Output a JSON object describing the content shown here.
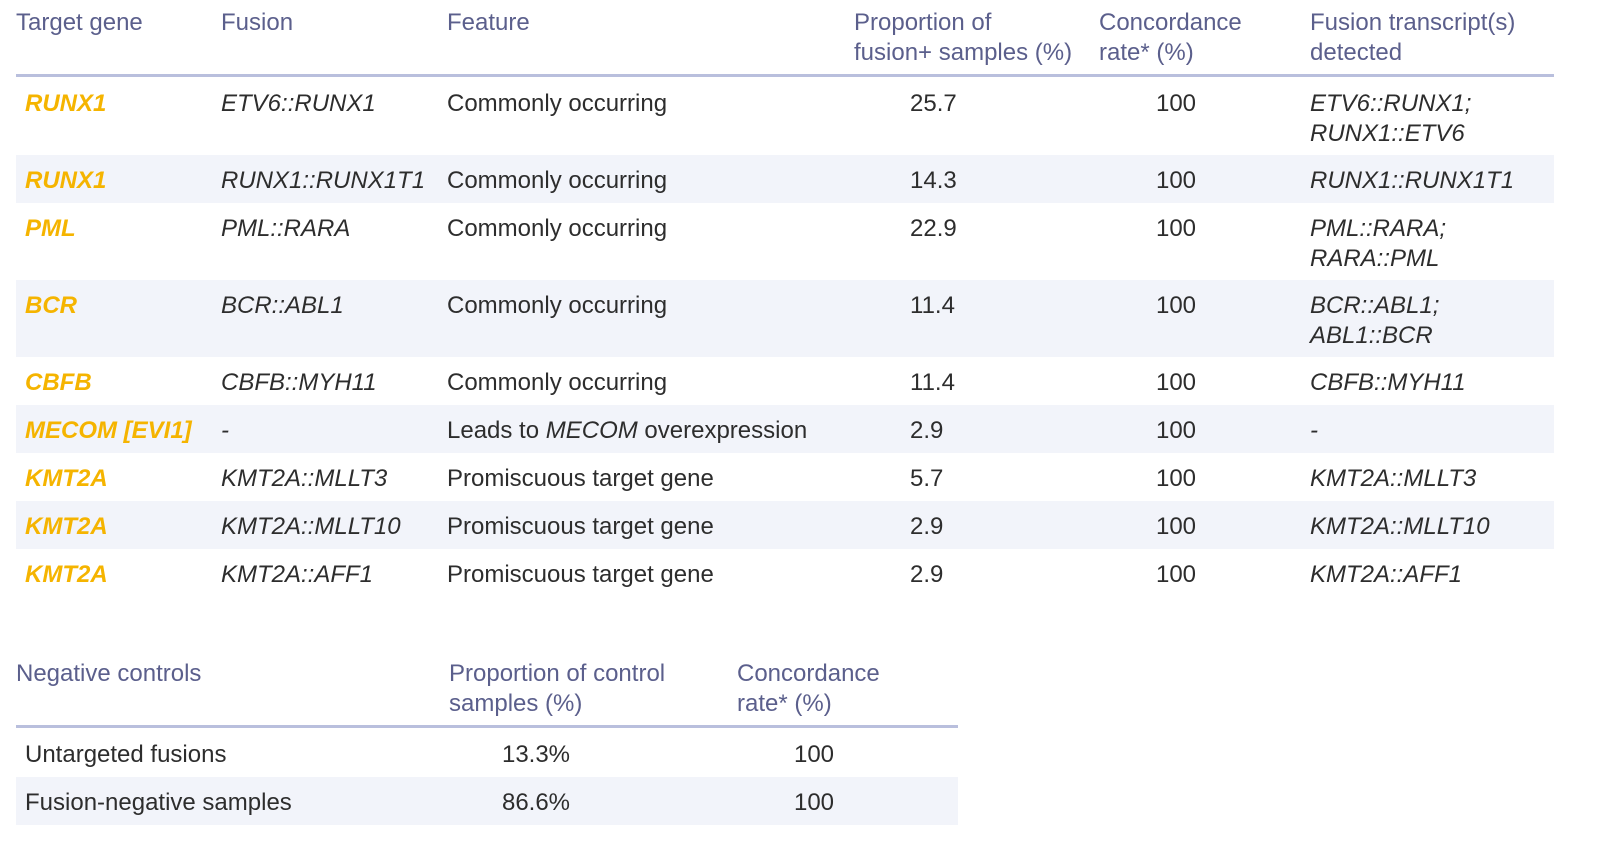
{
  "fusion_table": {
    "headers": {
      "target_gene": "Target gene",
      "fusion": "Fusion",
      "feature": "Feature",
      "proportion_line1": "Proportion of",
      "proportion_line2": "fusion+ samples (%)",
      "concordance_line1": "Concordance",
      "concordance_line2": "rate* (%)",
      "transcripts_line1": "Fusion transcript(s)",
      "transcripts_line2": "detected"
    },
    "rows": [
      {
        "gene": "RUNX1",
        "fusion": "ETV6::RUNX1",
        "feature_pre": "Commonly occurring",
        "feature_italic": "",
        "feature_post": "",
        "proportion": "25.7",
        "concordance": "100",
        "transcript1": "ETV6::RUNX1;",
        "transcript2": "RUNX1::ETV6"
      },
      {
        "gene": "RUNX1",
        "fusion": "RUNX1::RUNX1T1",
        "feature_pre": "Commonly occurring",
        "feature_italic": "",
        "feature_post": "",
        "proportion": "14.3",
        "concordance": "100",
        "transcript1": "RUNX1::RUNX1T1",
        "transcript2": ""
      },
      {
        "gene": "PML",
        "fusion": "PML::RARA",
        "feature_pre": "Commonly occurring",
        "feature_italic": "",
        "feature_post": "",
        "proportion": "22.9",
        "concordance": "100",
        "transcript1": "PML::RARA;",
        "transcript2": "RARA::PML"
      },
      {
        "gene": "BCR",
        "fusion": "BCR::ABL1",
        "feature_pre": "Commonly occurring",
        "feature_italic": "",
        "feature_post": "",
        "proportion": "11.4",
        "concordance": "100",
        "transcript1": "BCR::ABL1;",
        "transcript2": "ABL1::BCR"
      },
      {
        "gene": "CBFB",
        "fusion": "CBFB::MYH11",
        "feature_pre": "Commonly occurring",
        "feature_italic": "",
        "feature_post": "",
        "proportion": "11.4",
        "concordance": "100",
        "transcript1": "CBFB::MYH11",
        "transcript2": ""
      },
      {
        "gene": "MECOM [EVI1]",
        "fusion": "-",
        "feature_pre": "Leads to ",
        "feature_italic": "MECOM",
        "feature_post": " overexpression",
        "proportion": "2.9",
        "concordance": "100",
        "transcript1": "-",
        "transcript2": ""
      },
      {
        "gene": "KMT2A",
        "fusion": "KMT2A::MLLT3",
        "feature_pre": "Promiscuous target gene",
        "feature_italic": "",
        "feature_post": "",
        "proportion": "5.7",
        "concordance": "100",
        "transcript1": "KMT2A::MLLT3",
        "transcript2": ""
      },
      {
        "gene": "KMT2A",
        "fusion": "KMT2A::MLLT10",
        "feature_pre": "Promiscuous target gene",
        "feature_italic": "",
        "feature_post": "",
        "proportion": "2.9",
        "concordance": "100",
        "transcript1": "KMT2A::MLLT10",
        "transcript2": ""
      },
      {
        "gene": "KMT2A",
        "fusion": "KMT2A::AFF1",
        "feature_pre": "Promiscuous target gene",
        "feature_italic": "",
        "feature_post": "",
        "proportion": "2.9",
        "concordance": "100",
        "transcript1": "KMT2A::AFF1",
        "transcript2": ""
      }
    ]
  },
  "controls_table": {
    "headers": {
      "negative_controls": "Negative controls",
      "proportion_line1": "Proportion of control",
      "proportion_line2": "samples (%)",
      "concordance_line1": "Concordance",
      "concordance_line2": "rate* (%)"
    },
    "rows": [
      {
        "label": "Untargeted fusions",
        "proportion": "13.3%",
        "concordance": "100"
      },
      {
        "label": "Fusion-negative samples",
        "proportion": "86.6%",
        "concordance": "100"
      }
    ]
  },
  "colors": {
    "gene_text": "#f5b400",
    "header_text": "#5b5f8c",
    "rule": "#b9bfdd",
    "row_shade": "#f2f4fa"
  }
}
